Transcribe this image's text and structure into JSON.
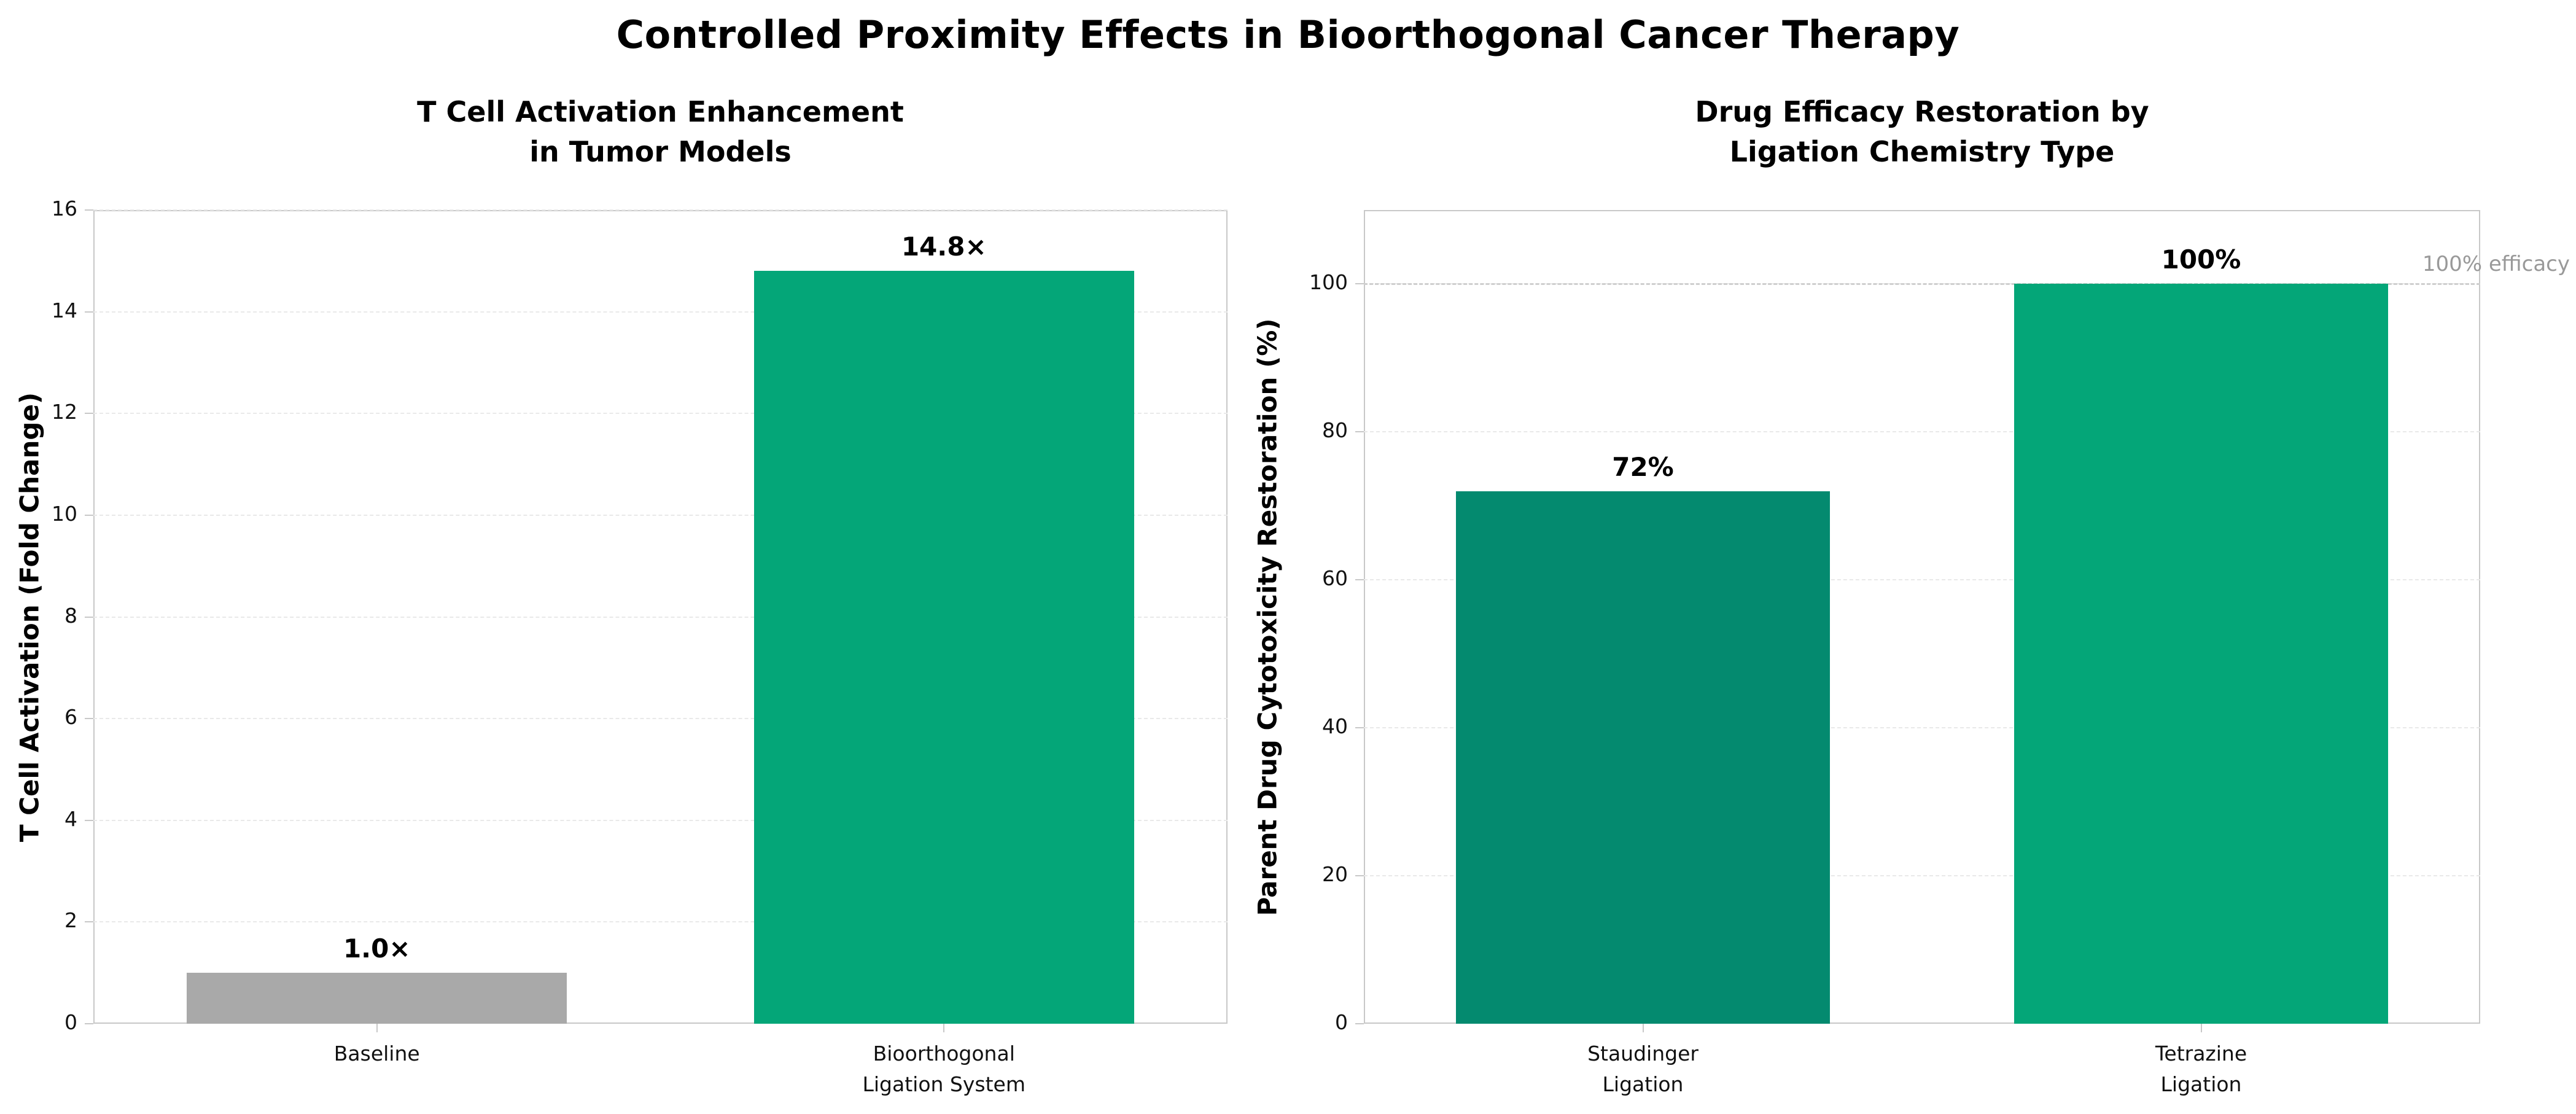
{
  "figure_title": "Controlled Proximity Effects in Bioorthogonal Cancer Therapy",
  "colors": {
    "bar_gray": "#a9a9a9",
    "bar_green": "#04a678",
    "bar_dark_green": "#048a6f",
    "spine": "#c8c8c8",
    "grid": "#e9e9e9",
    "tick": "#c8c8c8",
    "reference_line": "#cfcfcf",
    "annotation_text": "#999999",
    "text": "#000000"
  },
  "chart_data": [
    {
      "type": "bar",
      "title": "T Cell Activation Enhancement\nin Tumor Models",
      "categories": [
        "Baseline",
        "Bioorthogonal\nLigation System"
      ],
      "values": [
        1.0,
        14.8
      ],
      "bar_labels": [
        "1.0×",
        "14.8×"
      ],
      "bar_colors": [
        "#a9a9a9",
        "#04a678"
      ],
      "xlabel": "",
      "ylabel": "T Cell Activation (Fold Change)",
      "ylim": [
        0,
        16
      ],
      "yticks": [
        0,
        2,
        4,
        6,
        8,
        10,
        12,
        14,
        16
      ],
      "grid": "horizontal-dashed",
      "legend": "none"
    },
    {
      "type": "bar",
      "title": "Drug Efficacy Restoration by\nLigation Chemistry Type",
      "categories": [
        "Staudinger\nLigation",
        "Tetrazine\nLigation"
      ],
      "values": [
        72,
        100
      ],
      "bar_labels": [
        "72%",
        "100%"
      ],
      "bar_colors": [
        "#048a6f",
        "#04a678"
      ],
      "xlabel": "",
      "ylabel": "Parent Drug Cytotoxicity Restoration (%)",
      "ylim": [
        0,
        110
      ],
      "yticks": [
        0,
        20,
        40,
        60,
        80,
        100
      ],
      "grid": "horizontal-dashed",
      "legend": "none",
      "reference_line": {
        "y": 100,
        "label": "100% efficacy"
      }
    }
  ]
}
